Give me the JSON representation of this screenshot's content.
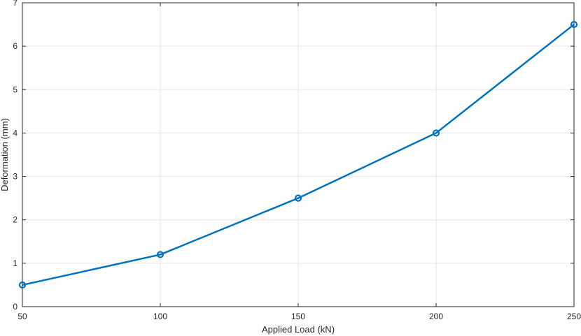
{
  "chart_data": {
    "type": "line",
    "title": "",
    "xlabel": "Applied Load (kN)",
    "ylabel": "Deformation (mm)",
    "xlim": [
      50,
      250
    ],
    "ylim": [
      0,
      7
    ],
    "xticks": [
      50,
      100,
      150,
      200,
      250
    ],
    "yticks": [
      0,
      1,
      2,
      3,
      4,
      5,
      6,
      7
    ],
    "grid": true,
    "series": [
      {
        "x": [
          50,
          100,
          150,
          200,
          250
        ],
        "y": [
          0.5,
          1.2,
          2.5,
          4.0,
          6.5
        ],
        "color": "#0072BD",
        "marker": "circle"
      }
    ]
  }
}
